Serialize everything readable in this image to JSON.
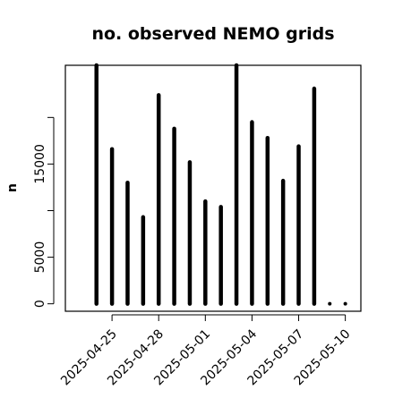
{
  "chart_data": {
    "type": "bar",
    "title": "no. observed NEMO grids",
    "xlabel": "",
    "ylabel": "n",
    "x": [
      "2025-04-24",
      "2025-04-25",
      "2025-04-26",
      "2025-04-27",
      "2025-04-28",
      "2025-04-29",
      "2025-04-30",
      "2025-05-01",
      "2025-05-02",
      "2025-05-03",
      "2025-05-04",
      "2025-05-05",
      "2025-05-06",
      "2025-05-07",
      "2025-05-08",
      "2025-05-09",
      "2025-05-10"
    ],
    "values": [
      25600,
      16600,
      13000,
      9300,
      22400,
      18800,
      15200,
      11000,
      10400,
      25600,
      19500,
      17800,
      13200,
      16900,
      23100,
      0,
      0
    ],
    "xlim": [
      "2025-04-22",
      "2025-05-11"
    ],
    "ylim": [
      -800,
      25600
    ],
    "y_ticks": [
      0,
      5000,
      10000,
      15000,
      20000
    ],
    "y_tick_labels": [
      "0",
      "5000",
      "",
      "15000",
      ""
    ],
    "x_ticks": [
      "2025-04-25",
      "2025-04-28",
      "2025-05-01",
      "2025-05-04",
      "2025-05-07",
      "2025-05-10"
    ],
    "x_tick_labels": [
      "2025-04-25",
      "2025-04-28",
      "2025-05-01",
      "2025-05-04",
      "2025-05-07",
      "2025-05-10"
    ],
    "grid": false,
    "style": "vertical-lines"
  }
}
